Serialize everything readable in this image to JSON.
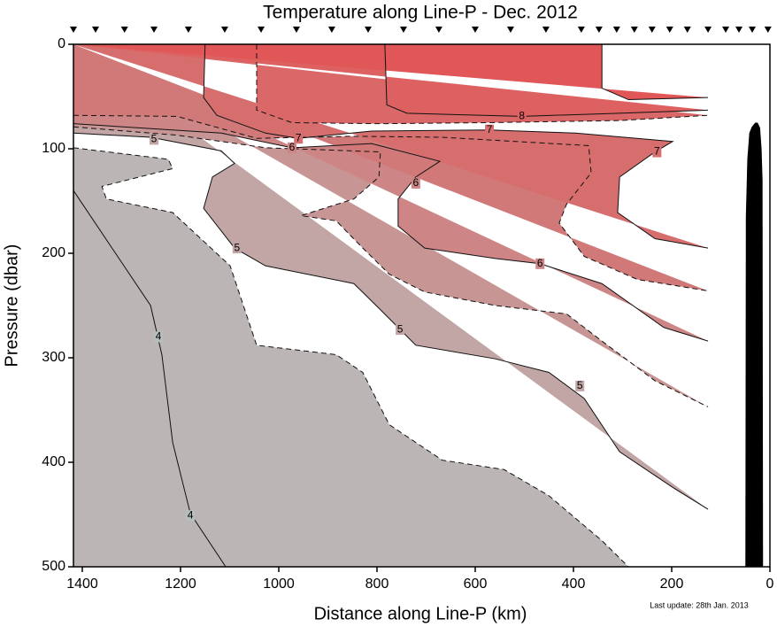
{
  "chart_data": {
    "type": "contour",
    "title": "Temperature along Line-P - Dec. 2012",
    "xlabel": "Distance along Line-P (km)",
    "ylabel": "Pressure (dbar)",
    "note": "Last update: 28th Jan. 2013",
    "xlim": [
      1418,
      0
    ],
    "ylim": [
      0,
      500
    ],
    "xticks": [
      1400,
      1200,
      1000,
      800,
      600,
      400,
      200,
      0
    ],
    "yticks": [
      0,
      100,
      200,
      300,
      400,
      500
    ],
    "background": "#acd8d5",
    "stations": [
      1418,
      1373,
      1314,
      1254,
      1184,
      1110,
      1036,
      964,
      892,
      818,
      746,
      674,
      600,
      528,
      456,
      384,
      348,
      312,
      276,
      240,
      204,
      168,
      126,
      90,
      63,
      36,
      4
    ],
    "contours": [
      {
        "level": 4,
        "style": "solid",
        "color": "#b6bebe",
        "x": [
          1418,
          1261,
          1238,
          1216,
          1180,
          1108
        ],
        "y": [
          140,
          250,
          297,
          381,
          449,
          500
        ]
      },
      {
        "level": 4.5,
        "style": "dashed",
        "color": "#bbb5b5",
        "x": [
          1418,
          1225,
          1216,
          1360,
          1351,
          1216,
          1099,
          1045,
          883,
          829,
          775,
          667,
          541,
          450,
          342,
          288
        ],
        "y": [
          99,
          110,
          119,
          136,
          148,
          161,
          212,
          288,
          297,
          314,
          364,
          398,
          407,
          432,
          475,
          500
        ]
      },
      {
        "level": 5,
        "style": "solid",
        "color": "#c2a5a5",
        "x": [
          1418,
          1261,
          1117,
          1090,
          1135,
          1153,
          1090,
          1027,
          847,
          793,
          757,
          721,
          559,
          450,
          378,
          306,
          198,
          126
        ],
        "y": [
          85,
          89,
          102,
          114,
          127,
          157,
          195,
          212,
          229,
          254,
          271,
          288,
          301,
          314,
          339,
          390,
          424,
          445
        ]
      },
      {
        "level": 5.5,
        "style": "dashed",
        "color": "#c89595",
        "x": [
          1418,
          1207,
          1027,
          793,
          796,
          847,
          955,
          883,
          829,
          775,
          703,
          559,
          414,
          342,
          234,
          126
        ],
        "y": [
          79,
          87,
          99,
          103,
          127,
          148,
          164,
          169,
          195,
          220,
          237,
          250,
          258,
          284,
          322,
          347
        ]
      },
      {
        "level": 6,
        "style": "solid",
        "color": "#cd8585",
        "x": [
          1418,
          1117,
          973,
          811,
          672,
          721,
          757,
          757,
          703,
          559,
          468,
          342,
          216,
          126
        ],
        "y": [
          76,
          85,
          99,
          95,
          112,
          127,
          148,
          174,
          195,
          205,
          210,
          229,
          271,
          284
        ]
      },
      {
        "level": 6.5,
        "style": "dashed",
        "color": "#d17878",
        "x": [
          1418,
          1207,
          1045,
          847,
          667,
          369,
          364,
          414,
          429,
          378,
          270,
          126
        ],
        "y": [
          68,
          69,
          90,
          88,
          89,
          97,
          123,
          153,
          171,
          203,
          225,
          236
        ]
      },
      {
        "level": 7,
        "style": "solid",
        "color": "#d66e6e",
        "x": [
          1150,
          1153,
          1126,
          1027,
          960,
          811,
          571,
          396,
          198,
          234,
          306,
          310,
          234,
          126
        ],
        "y": [
          0,
          51,
          68,
          85,
          90,
          83,
          82,
          85,
          93,
          103,
          127,
          161,
          186,
          195
        ]
      },
      {
        "level": 7.5,
        "style": "dashed",
        "color": "#da6868",
        "x": [
          1045,
          1045,
          973,
          793,
          577,
          306,
          126
        ],
        "y": [
          0,
          63,
          75,
          76,
          75,
          73,
          68
        ]
      },
      {
        "level": 8,
        "style": "solid",
        "color": "#de6161",
        "x": [
          784,
          780,
          739,
          505,
          306,
          126
        ],
        "y": [
          0,
          58,
          66,
          69,
          66,
          63
        ]
      },
      {
        "level": 8.5,
        "style": "solid",
        "color": "#e15656",
        "x": [
          342,
          342,
          288,
          126
        ],
        "y": [
          0,
          42,
          53,
          51
        ]
      }
    ],
    "seafloor": {
      "color": "#000000",
      "x": [
        50,
        49,
        46,
        42,
        37,
        30,
        25,
        20,
        17,
        15,
        14
      ],
      "y": [
        500,
        165,
        110,
        85,
        79,
        75,
        75,
        80,
        100,
        130,
        500
      ]
    }
  }
}
